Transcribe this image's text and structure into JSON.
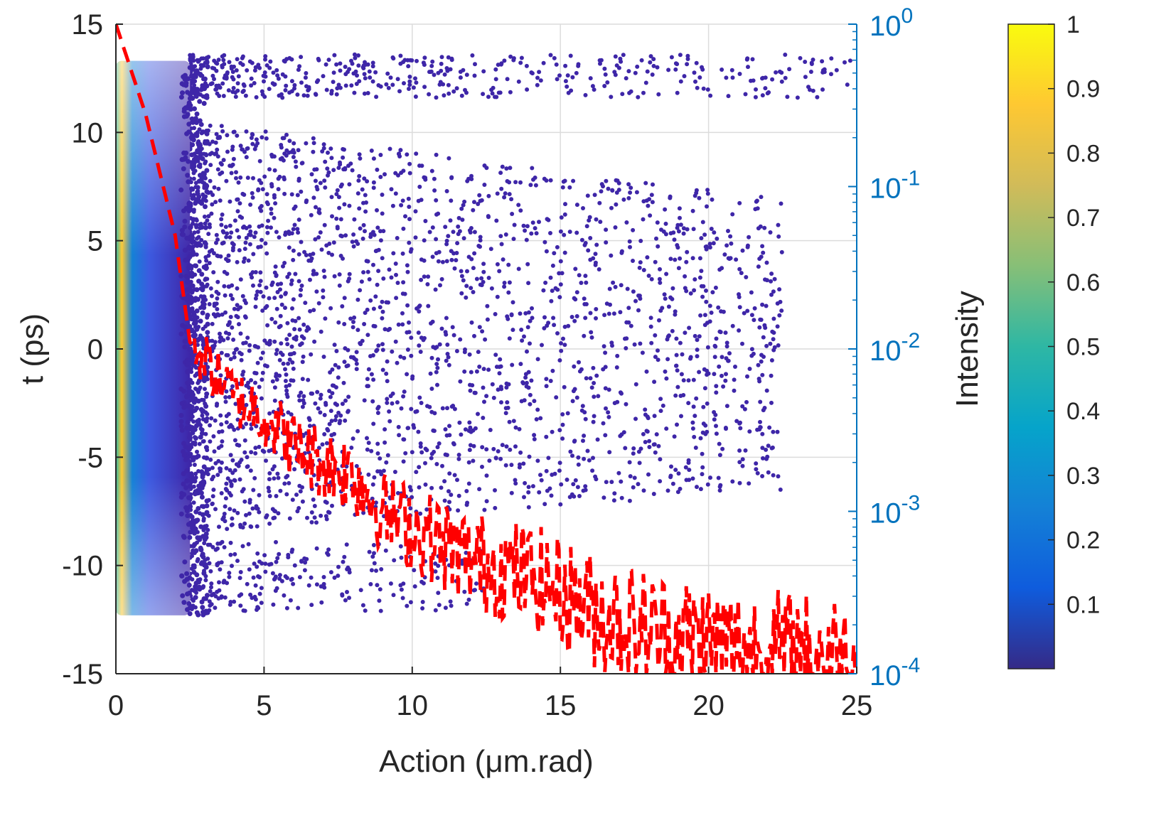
{
  "chart_data": {
    "type": "scatter",
    "title": "",
    "xlabel": "Action (μm.rad)",
    "ylabel": "t (ps)",
    "y2label": "Intensity",
    "xlim": [
      0,
      25
    ],
    "ylim": [
      -15,
      15
    ],
    "y2lim": [
      0.0001,
      1
    ],
    "y2scale": "log",
    "grid": true,
    "x_ticks": [
      "0",
      "5",
      "10",
      "15",
      "20",
      "25"
    ],
    "y_ticks": [
      "-15",
      "-10",
      "-5",
      "0",
      "5",
      "10",
      "15"
    ],
    "y2_ticks": [
      {
        "base": "10",
        "exp": "-4"
      },
      {
        "base": "10",
        "exp": "-3"
      },
      {
        "base": "10",
        "exp": "-2"
      },
      {
        "base": "10",
        "exp": "-1"
      },
      {
        "base": "10",
        "exp": "0"
      }
    ],
    "colorbar": {
      "colormap": "parula",
      "range": [
        0,
        1
      ],
      "ticks": [
        "0.1",
        "0.2",
        "0.3",
        "0.4",
        "0.5",
        "0.6",
        "0.7",
        "0.8",
        "0.9",
        "1"
      ]
    },
    "colors": {
      "sparse_points": "#3e26a8",
      "intensity_line": "#ff0000",
      "right_axis": "#0072bd",
      "grid": "#dcdcdc"
    },
    "series": [
      {
        "kind": "scatter",
        "description_fields": [
          "action",
          "t",
          "density"
        ],
        "core_region": {
          "action": [
            0,
            2.5
          ],
          "t": [
            -12.3,
            13.3
          ]
        },
        "halo_region": {
          "action": [
            2.5,
            25
          ],
          "t_upper": [
            -8.5,
            10.5
          ],
          "t_band": [
            11.5,
            13.8
          ],
          "t_lower": [
            -12.2,
            -8.8
          ]
        }
      },
      {
        "kind": "line",
        "style": "dashed",
        "axis": "right",
        "profile": [
          [
            0,
            1.0
          ],
          [
            1,
            0.28
          ],
          [
            2,
            0.05
          ],
          [
            2.5,
            0.011
          ],
          [
            3,
            0.0085
          ],
          [
            4,
            0.005
          ],
          [
            5,
            0.004
          ],
          [
            6,
            0.0025
          ],
          [
            7,
            0.002
          ],
          [
            8,
            0.0017
          ],
          [
            9,
            0.001
          ],
          [
            10,
            0.0008
          ],
          [
            12,
            0.0005
          ],
          [
            14,
            0.0004
          ],
          [
            16,
            0.00025
          ],
          [
            18,
            0.00018
          ],
          [
            20,
            0.00015
          ],
          [
            22,
            0.00013
          ],
          [
            25,
            0.00012
          ]
        ]
      }
    ]
  }
}
